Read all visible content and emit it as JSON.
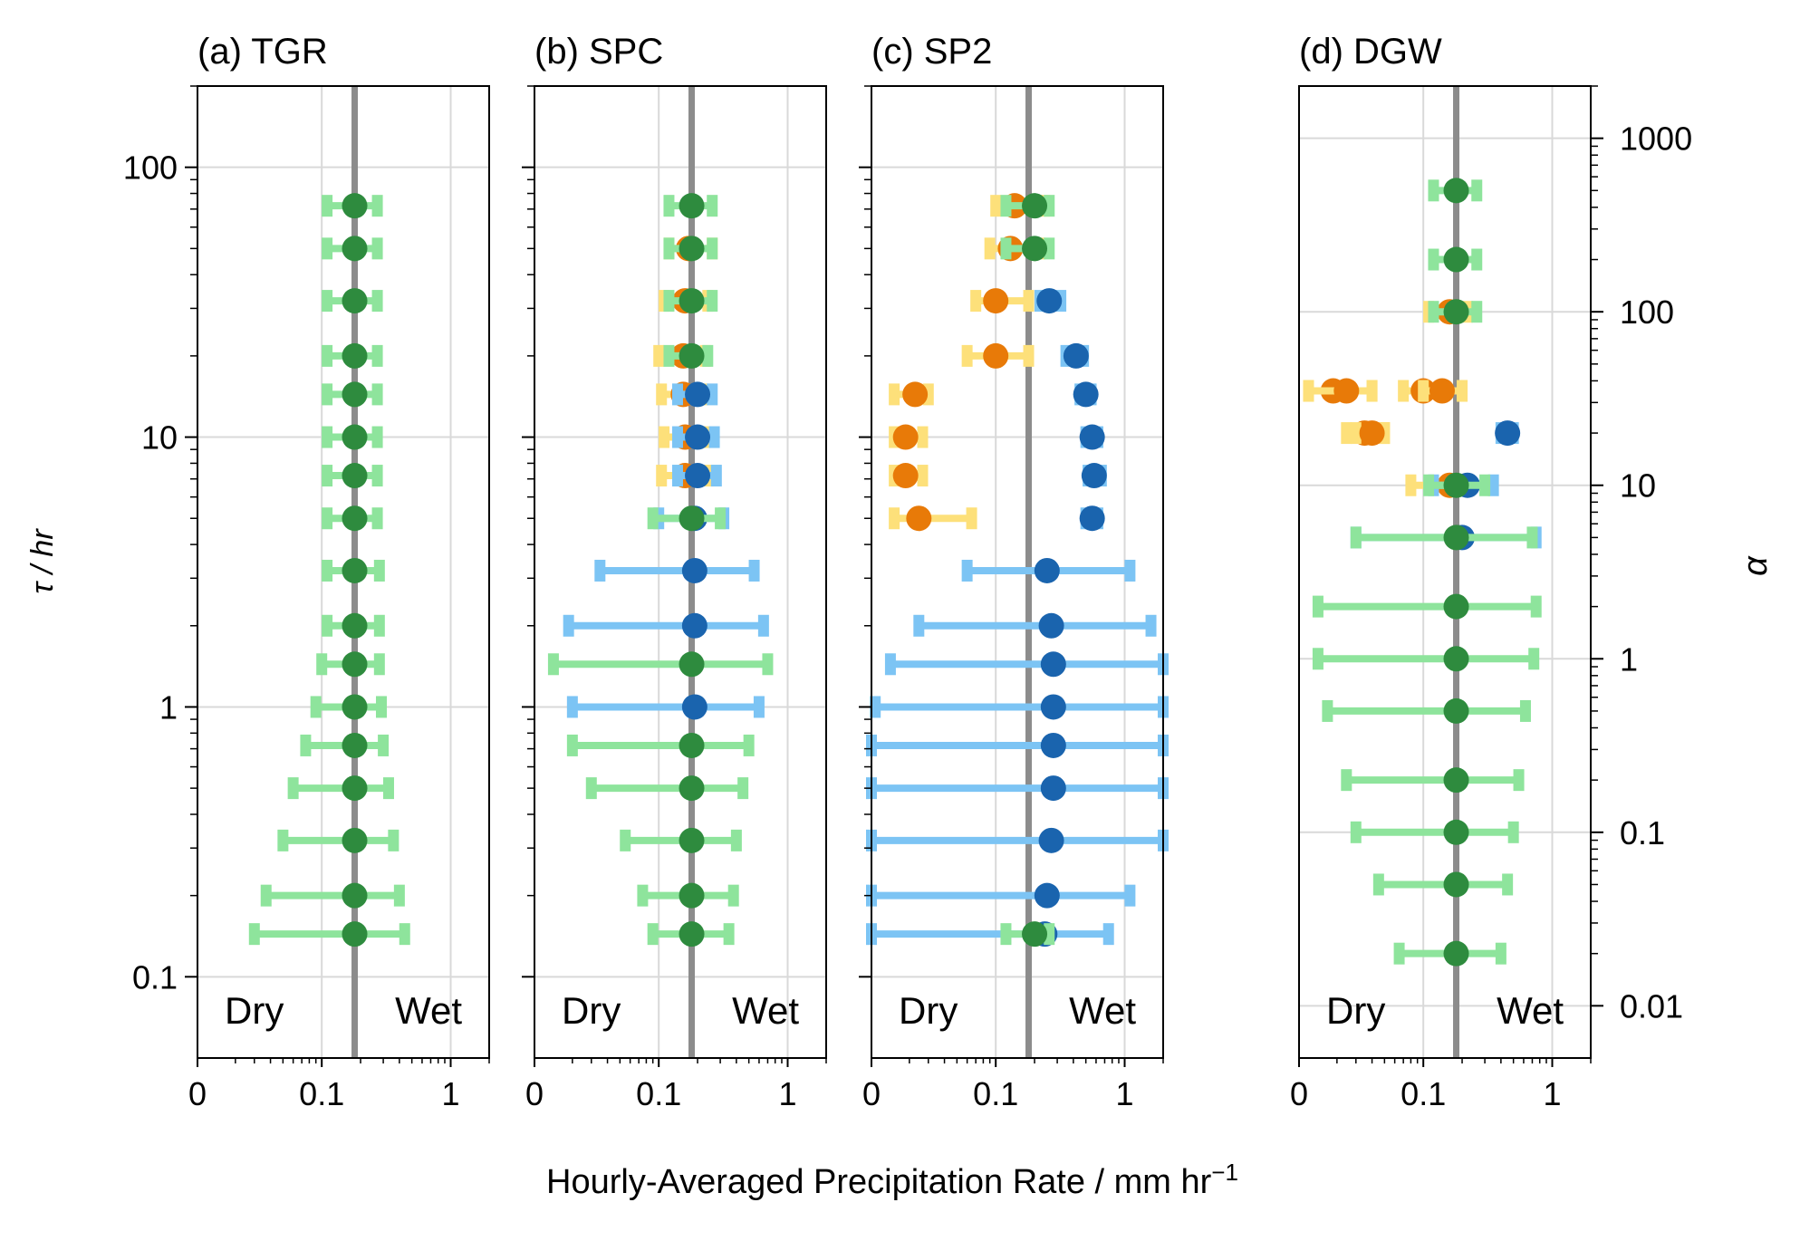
{
  "figure": {
    "xlabel": "Hourly-Averaged Precipitation Rate / mm hr",
    "xlabel_sup": "−1",
    "ylabel_left": "τ / hr",
    "ylabel_right": "α",
    "annotation_dry": "Dry",
    "annotation_wet": "Wet"
  },
  "colors": {
    "light_green": "#8ee49c",
    "dark_green": "#2e8b3e",
    "light_blue": "#7cc4f4",
    "dark_blue": "#1a64ae",
    "light_yellow": "#fde07a",
    "orange": "#e87a08",
    "reference_line": "#8c8c8c",
    "grid": "#d9d9d9"
  },
  "chart_data": [
    {
      "type": "scatter",
      "title": "(a) TGR",
      "xscale": "symlog",
      "xticks": [
        "0",
        "0.1",
        "1"
      ],
      "xlim": [
        0,
        2.2
      ],
      "yscale": "log",
      "ylim": [
        0.05,
        200
      ],
      "yticks": [
        "0.1",
        "1",
        "10",
        "100"
      ],
      "ylabel": "τ / hr",
      "reference_line_x": 0.18,
      "series": [
        {
          "color": "dark_green",
          "error_color": "light_green",
          "points": [
            {
              "y": 72,
              "x": 0.18,
              "lo": 0.11,
              "hi": 0.27
            },
            {
              "y": 50,
              "x": 0.18,
              "lo": 0.11,
              "hi": 0.27
            },
            {
              "y": 32,
              "x": 0.18,
              "lo": 0.11,
              "hi": 0.27
            },
            {
              "y": 20,
              "x": 0.18,
              "lo": 0.11,
              "hi": 0.27
            },
            {
              "y": 14.4,
              "x": 0.18,
              "lo": 0.11,
              "hi": 0.27
            },
            {
              "y": 10,
              "x": 0.18,
              "lo": 0.11,
              "hi": 0.27
            },
            {
              "y": 7.2,
              "x": 0.18,
              "lo": 0.11,
              "hi": 0.27
            },
            {
              "y": 5,
              "x": 0.18,
              "lo": 0.11,
              "hi": 0.27
            },
            {
              "y": 3.2,
              "x": 0.18,
              "lo": 0.11,
              "hi": 0.28
            },
            {
              "y": 2,
              "x": 0.18,
              "lo": 0.11,
              "hi": 0.28
            },
            {
              "y": 1.44,
              "x": 0.18,
              "lo": 0.1,
              "hi": 0.28
            },
            {
              "y": 1,
              "x": 0.18,
              "lo": 0.09,
              "hi": 0.29
            },
            {
              "y": 0.72,
              "x": 0.18,
              "lo": 0.075,
              "hi": 0.3
            },
            {
              "y": 0.5,
              "x": 0.18,
              "lo": 0.06,
              "hi": 0.33
            },
            {
              "y": 0.32,
              "x": 0.18,
              "lo": 0.05,
              "hi": 0.36
            },
            {
              "y": 0.2,
              "x": 0.18,
              "lo": 0.037,
              "hi": 0.4
            },
            {
              "y": 0.144,
              "x": 0.18,
              "lo": 0.03,
              "hi": 0.44
            }
          ]
        }
      ]
    },
    {
      "type": "scatter",
      "title": "(b) SPC",
      "xscale": "symlog",
      "xticks": [
        "0",
        "0.1",
        "1"
      ],
      "xlim": [
        0,
        2.2
      ],
      "yscale": "log",
      "ylim": [
        0.05,
        200
      ],
      "reference_line_x": 0.18,
      "series": [
        {
          "color": "orange",
          "error_color": "light_yellow",
          "points": [
            {
              "y": 50,
              "x": 0.17,
              "lo": 0.12,
              "hi": 0.26
            },
            {
              "y": 32,
              "x": 0.16,
              "lo": 0.11,
              "hi": 0.24
            },
            {
              "y": 20,
              "x": 0.155,
              "lo": 0.1,
              "hi": 0.23
            },
            {
              "y": 14.4,
              "x": 0.155,
              "lo": 0.105,
              "hi": 0.22
            },
            {
              "y": 10,
              "x": 0.16,
              "lo": 0.11,
              "hi": 0.23
            },
            {
              "y": 7.2,
              "x": 0.16,
              "lo": 0.105,
              "hi": 0.24
            }
          ]
        },
        {
          "color": "dark_blue",
          "error_color": "light_blue",
          "points": [
            {
              "y": 14.4,
              "x": 0.2,
              "lo": 0.14,
              "hi": 0.26
            },
            {
              "y": 10,
              "x": 0.2,
              "lo": 0.14,
              "hi": 0.27
            },
            {
              "y": 7.2,
              "x": 0.2,
              "lo": 0.14,
              "hi": 0.28
            },
            {
              "y": 5,
              "x": 0.19,
              "lo": 0.1,
              "hi": 0.32
            },
            {
              "y": 3.2,
              "x": 0.19,
              "lo": 0.035,
              "hi": 0.55
            },
            {
              "y": 2,
              "x": 0.19,
              "lo": 0.018,
              "hi": 0.65
            },
            {
              "y": 1,
              "x": 0.19,
              "lo": 0.02,
              "hi": 0.6
            }
          ]
        },
        {
          "color": "dark_green",
          "error_color": "light_green",
          "points": [
            {
              "y": 72,
              "x": 0.18,
              "lo": 0.12,
              "hi": 0.26
            },
            {
              "y": 50,
              "x": 0.18,
              "lo": 0.12,
              "hi": 0.26
            },
            {
              "y": 32,
              "x": 0.18,
              "lo": 0.12,
              "hi": 0.26
            },
            {
              "y": 20,
              "x": 0.18,
              "lo": 0.12,
              "hi": 0.24
            },
            {
              "y": 5,
              "x": 0.18,
              "lo": 0.09,
              "hi": 0.3
            },
            {
              "y": 1.44,
              "x": 0.18,
              "lo": 0.01,
              "hi": 0.7
            },
            {
              "y": 0.72,
              "x": 0.18,
              "lo": 0.02,
              "hi": 0.5
            },
            {
              "y": 0.5,
              "x": 0.18,
              "lo": 0.03,
              "hi": 0.45
            },
            {
              "y": 0.32,
              "x": 0.18,
              "lo": 0.055,
              "hi": 0.4
            },
            {
              "y": 0.2,
              "x": 0.18,
              "lo": 0.075,
              "hi": 0.38
            },
            {
              "y": 0.144,
              "x": 0.18,
              "lo": 0.09,
              "hi": 0.35
            }
          ]
        }
      ]
    },
    {
      "type": "scatter",
      "title": "(c) SP2",
      "xscale": "symlog",
      "xticks": [
        "0",
        "0.1",
        "1"
      ],
      "xlim": [
        0,
        2.2
      ],
      "yscale": "log",
      "ylim": [
        0.05,
        200
      ],
      "reference_line_x": 0.18,
      "series": [
        {
          "color": "orange",
          "error_color": "light_yellow",
          "points": [
            {
              "y": 72,
              "x": 0.14,
              "lo": 0.1,
              "hi": 0.24
            },
            {
              "y": 50,
              "x": 0.13,
              "lo": 0.09,
              "hi": 0.22
            },
            {
              "y": 32,
              "x": 0.1,
              "lo": 0.07,
              "hi": 0.18
            },
            {
              "y": 20,
              "x": 0.1,
              "lo": 0.06,
              "hi": 0.18
            },
            {
              "y": 14.4,
              "x": 0.023,
              "lo": 0.012,
              "hi": 0.03
            },
            {
              "y": 10,
              "x": 0.018,
              "lo": 0.012,
              "hi": 0.027
            },
            {
              "y": 7.2,
              "x": 0.018,
              "lo": 0.012,
              "hi": 0.027
            },
            {
              "y": 5,
              "x": 0.025,
              "lo": 0.012,
              "hi": 0.065
            }
          ]
        },
        {
          "color": "dark_blue",
          "error_color": "light_blue",
          "points": [
            {
              "y": 32,
              "x": 0.26,
              "lo": 0.22,
              "hi": 0.32
            },
            {
              "y": 20,
              "x": 0.42,
              "lo": 0.35,
              "hi": 0.48
            },
            {
              "y": 14.4,
              "x": 0.5,
              "lo": 0.45,
              "hi": 0.55
            },
            {
              "y": 10,
              "x": 0.56,
              "lo": 0.5,
              "hi": 0.62
            },
            {
              "y": 7.2,
              "x": 0.58,
              "lo": 0.52,
              "hi": 0.66
            },
            {
              "y": 5,
              "x": 0.56,
              "lo": 0.5,
              "hi": 0.62
            },
            {
              "y": 3.2,
              "x": 0.25,
              "lo": 0.06,
              "hi": 1.1
            },
            {
              "y": 2,
              "x": 0.27,
              "lo": 0.025,
              "hi": 1.6
            },
            {
              "y": 1.44,
              "x": 0.28,
              "lo": 0.01,
              "hi": 2.2
            },
            {
              "y": 1,
              "x": 0.28,
              "lo": 0.002,
              "hi": 2.2
            },
            {
              "y": 0.72,
              "x": 0.28,
              "lo": 0.0,
              "hi": 2.2
            },
            {
              "y": 0.5,
              "x": 0.28,
              "lo": 0.0,
              "hi": 2.2
            },
            {
              "y": 0.32,
              "x": 0.27,
              "lo": 0.0,
              "hi": 2.0
            },
            {
              "y": 0.2,
              "x": 0.25,
              "lo": 0.0,
              "hi": 1.1
            },
            {
              "y": 0.144,
              "x": 0.24,
              "lo": 0.0,
              "hi": 0.75
            }
          ]
        },
        {
          "color": "dark_green",
          "error_color": "light_green",
          "points": [
            {
              "y": 72,
              "x": 0.2,
              "lo": 0.12,
              "hi": 0.26
            },
            {
              "y": 50,
              "x": 0.2,
              "lo": 0.12,
              "hi": 0.26
            },
            {
              "y": 0.144,
              "x": 0.2,
              "lo": 0.12,
              "hi": 0.26
            }
          ]
        }
      ]
    },
    {
      "type": "scatter",
      "title": "(d) DGW",
      "xscale": "symlog",
      "xticks": [
        "0",
        "0.1",
        "1"
      ],
      "xlim": [
        0,
        2.2
      ],
      "yscale": "log",
      "ylim": [
        0.005,
        2000
      ],
      "yticks": [
        "0.01",
        "0.1",
        "1",
        "10",
        "100",
        "1000"
      ],
      "ylabel": "α",
      "reference_line_x": 0.18,
      "series": [
        {
          "color": "orange",
          "error_color": "light_yellow",
          "points": [
            {
              "y": 100,
              "x": 0.16,
              "lo": 0.11,
              "hi": 0.22
            },
            {
              "y": 35,
              "x": 0.018,
              "lo": 0.005,
              "hi": 0.04
            },
            {
              "y": 35,
              "x": 0.025,
              "lo": 0.005,
              "hi": 0.04
            },
            {
              "y": 35,
              "x": 0.1,
              "lo": 0.07,
              "hi": 0.2
            },
            {
              "y": 35,
              "x": 0.14,
              "lo": 0.1,
              "hi": 0.2
            },
            {
              "y": 20,
              "x": 0.035,
              "lo": 0.025,
              "hi": 0.05
            },
            {
              "y": 20,
              "x": 0.04,
              "lo": 0.03,
              "hi": 0.05
            },
            {
              "y": 10,
              "x": 0.16,
              "lo": 0.08,
              "hi": 0.2
            }
          ]
        },
        {
          "color": "dark_blue",
          "error_color": "light_blue",
          "points": [
            {
              "y": 20,
              "x": 0.45,
              "lo": 0.4,
              "hi": 0.5
            },
            {
              "y": 10,
              "x": 0.22,
              "lo": 0.12,
              "hi": 0.35
            },
            {
              "y": 5,
              "x": 0.2,
              "lo": 0.03,
              "hi": 0.75
            }
          ]
        },
        {
          "color": "dark_green",
          "error_color": "light_green",
          "points": [
            {
              "y": 500,
              "x": 0.18,
              "lo": 0.12,
              "hi": 0.26
            },
            {
              "y": 200,
              "x": 0.18,
              "lo": 0.12,
              "hi": 0.26
            },
            {
              "y": 100,
              "x": 0.18,
              "lo": 0.12,
              "hi": 0.26
            },
            {
              "y": 10,
              "x": 0.18,
              "lo": 0.11,
              "hi": 0.3
            },
            {
              "y": 5,
              "x": 0.18,
              "lo": 0.03,
              "hi": 0.7
            },
            {
              "y": 2,
              "x": 0.18,
              "lo": 0.01,
              "hi": 0.75
            },
            {
              "y": 1,
              "x": 0.18,
              "lo": 0.01,
              "hi": 0.72
            },
            {
              "y": 0.5,
              "x": 0.18,
              "lo": 0.015,
              "hi": 0.62
            },
            {
              "y": 0.2,
              "x": 0.18,
              "lo": 0.025,
              "hi": 0.55
            },
            {
              "y": 0.1,
              "x": 0.18,
              "lo": 0.03,
              "hi": 0.5
            },
            {
              "y": 0.05,
              "x": 0.18,
              "lo": 0.045,
              "hi": 0.45
            },
            {
              "y": 0.02,
              "x": 0.18,
              "lo": 0.065,
              "hi": 0.4
            }
          ]
        }
      ]
    }
  ]
}
